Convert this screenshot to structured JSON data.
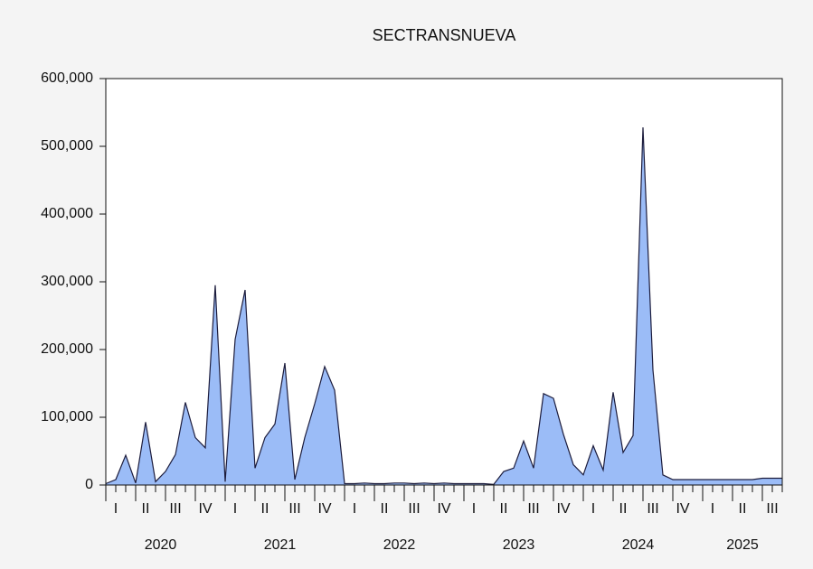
{
  "chart_data": {
    "type": "area",
    "title": "SECTRANSNUEVA",
    "quarters": [
      "I",
      "II",
      "III",
      "IV",
      "I",
      "II",
      "III",
      "IV",
      "I",
      "II",
      "III",
      "IV",
      "I",
      "II",
      "III",
      "IV",
      "I",
      "II",
      "III",
      "IV",
      "I",
      "II",
      "III"
    ],
    "years": [
      "2020",
      "2021",
      "2022",
      "2023",
      "2024",
      "2025"
    ],
    "color": "#9bbcf7",
    "line_color": "#1c1c3c",
    "values": [
      2000,
      8000,
      44000,
      3000,
      93000,
      5000,
      20000,
      45000,
      122000,
      70000,
      55000,
      295000,
      5000,
      215000,
      288000,
      25000,
      70000,
      90000,
      180000,
      8000,
      70000,
      120000,
      175000,
      140000,
      2000,
      2000,
      3000,
      2000,
      2000,
      3000,
      3000,
      2000,
      3000,
      2000,
      3000,
      2000,
      2000,
      2000,
      2000,
      1000,
      20000,
      25000,
      65000,
      25000,
      135000,
      128000,
      75000,
      30000,
      15000,
      58000,
      22000,
      137000,
      48000,
      73000,
      528000,
      170000,
      15000,
      8000,
      8000,
      8000,
      8000,
      8000,
      8000,
      8000,
      8000,
      8000,
      10000,
      10000,
      10000
    ],
    "ylim": [
      0,
      600000
    ],
    "yticks": [
      0,
      {
        "value": 100000,
        "label": "100,000"
      },
      {
        "value": 200000,
        "label": "200,000"
      },
      {
        "value": 300000,
        "label": "300,000"
      },
      {
        "value": 400000,
        "label": "400,000"
      },
      {
        "value": 500000,
        "label": "500,000"
      },
      {
        "value": 600000,
        "label": "600,000"
      }
    ]
  }
}
